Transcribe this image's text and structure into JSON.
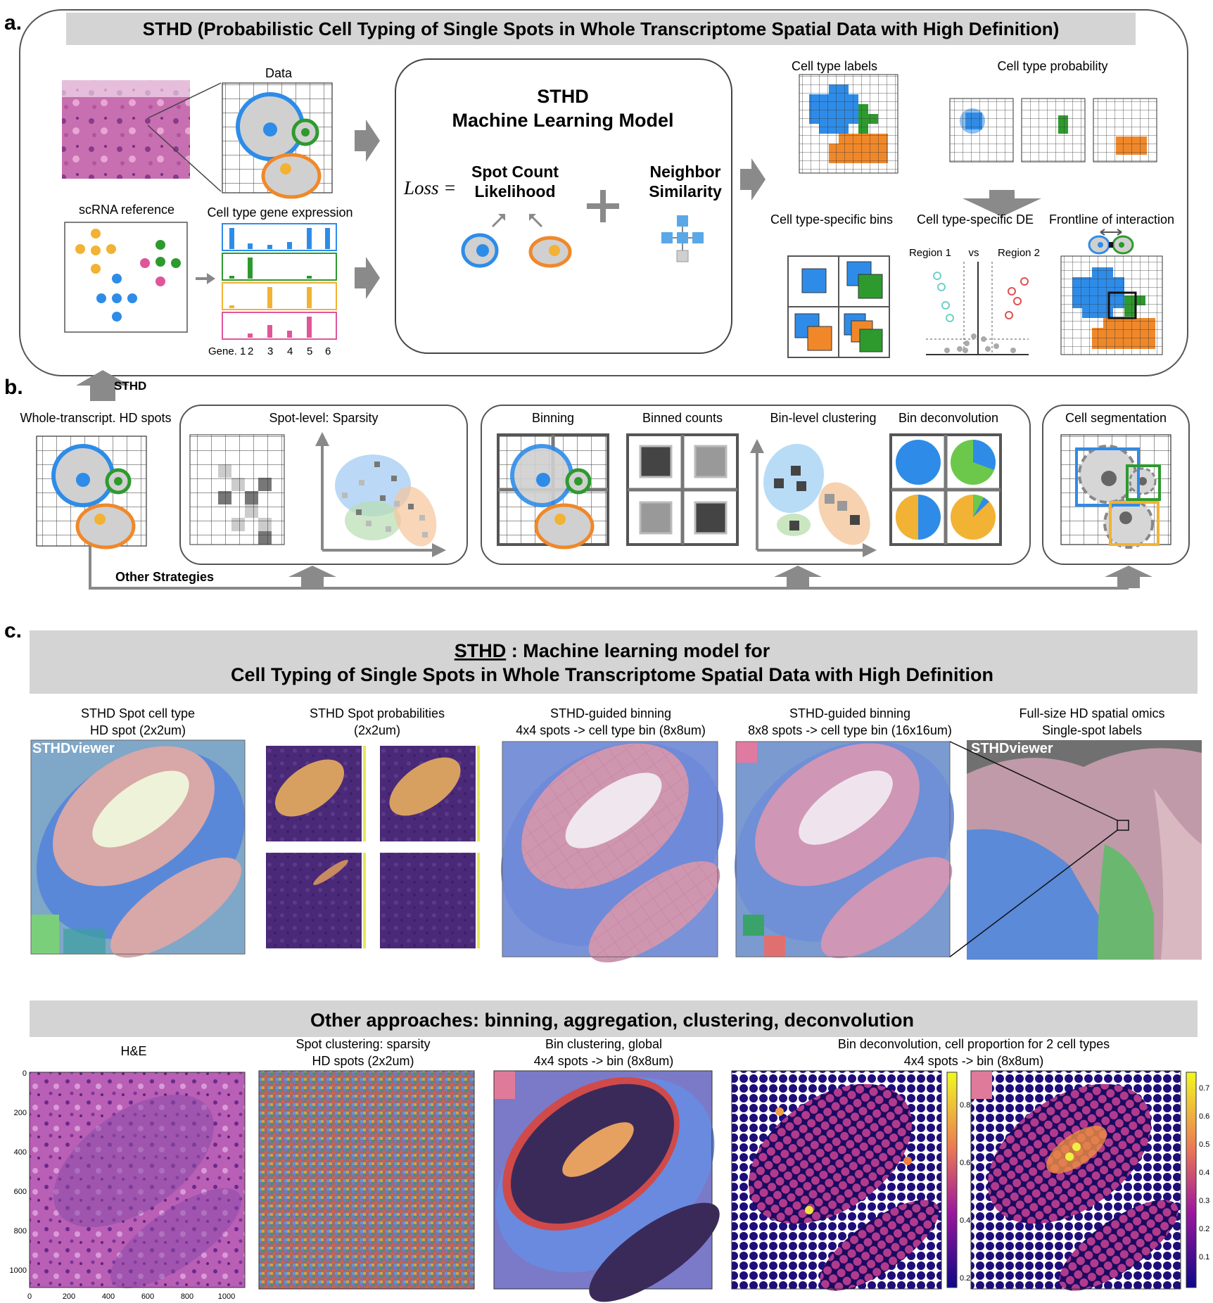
{
  "panel_a": {
    "letter": "a.",
    "title": "STHD (Probabilistic Cell Typing of Single Spots in Whole Transcriptome Spatial Data with High Definition)",
    "data_label": "Data",
    "scrna_label": "scRNA reference",
    "gene_expr_label": "Cell type gene expression",
    "gene_axis": [
      "Gene. 1",
      "2",
      "3",
      "4",
      "5",
      "6"
    ],
    "model_title_1": "STHD",
    "model_title_2": "Machine Learning Model",
    "loss_label": "Loss =",
    "term1_line1": "Spot Count",
    "term1_line2": "Likelihood",
    "term2_line1": "Neighbor",
    "term2_line2": "Similarity",
    "out_labels": "Cell type labels",
    "out_prob": "Cell type probability",
    "out_bins": "Cell type-specific bins",
    "out_de": "Cell type-specific DE",
    "out_front": "Frontline of interaction",
    "region1": "Region 1",
    "vs": "vs",
    "region2": "Region 2"
  },
  "panel_b": {
    "letter": "b.",
    "sthd_arrow": "STHD",
    "whole": "Whole-transcript. HD spots",
    "sparsity": "Spot-level: Sparsity",
    "binning": "Binning",
    "binned": "Binned counts",
    "binclust": "Bin-level clustering",
    "bindeconv": "Bin deconvolution",
    "cellseg": "Cell segmentation",
    "other": "Other Strategies"
  },
  "panel_c": {
    "letter": "c.",
    "title1_sthd": "STHD",
    "title1_rest": " : Machine learning model for",
    "title2": "Cell Typing of Single Spots in Whole Transcriptome Spatial Data with High Definition",
    "col1_l1": "STHD Spot cell type",
    "col1_l2": "HD spot (2x2um)",
    "col2_l1": "STHD Spot probabilities",
    "col2_l2": "(2x2um)",
    "col3_l1": "STHD-guided binning",
    "col3_l2": "4x4 spots -> cell type bin (8x8um)",
    "col4_l1": "STHD-guided binning",
    "col4_l2": "8x8 spots -> cell type bin (16x16um)",
    "col5_l1": "Full-size HD spatial omics",
    "col5_l2": "Single-spot labels",
    "viewer": "STHDviewer",
    "other_title": "Other approaches: binning, aggregation, clustering, deconvolution",
    "o1": "H&E",
    "o2_l1": "Spot clustering: sparsity",
    "o2_l2": "HD spots (2x2um)",
    "o3_l1": "Bin clustering, global",
    "o3_l2": "4x4 spots -> bin (8x8um)",
    "o4_l1": "Bin deconvolution, cell proportion for 2 cell types",
    "o4_l2": "4x4 spots -> bin (8x8um)",
    "he_yticks": [
      "0",
      "200",
      "400",
      "600",
      "800",
      "1000"
    ],
    "he_xticks": [
      "0",
      "200",
      "400",
      "600",
      "800",
      "1000"
    ],
    "cb1_ticks": [
      "0.8",
      "0.6",
      "0.4",
      "0.2"
    ],
    "cb2_ticks": [
      "0.7",
      "0.6",
      "0.5",
      "0.4",
      "0.3",
      "0.2",
      "0.1"
    ]
  },
  "colors": {
    "blue": "#2E8CE8",
    "green": "#2E9A2E",
    "orange": "#F0882A",
    "yellow": "#F2B233",
    "pink": "#E0559A",
    "gray": "#8a8a8a"
  }
}
